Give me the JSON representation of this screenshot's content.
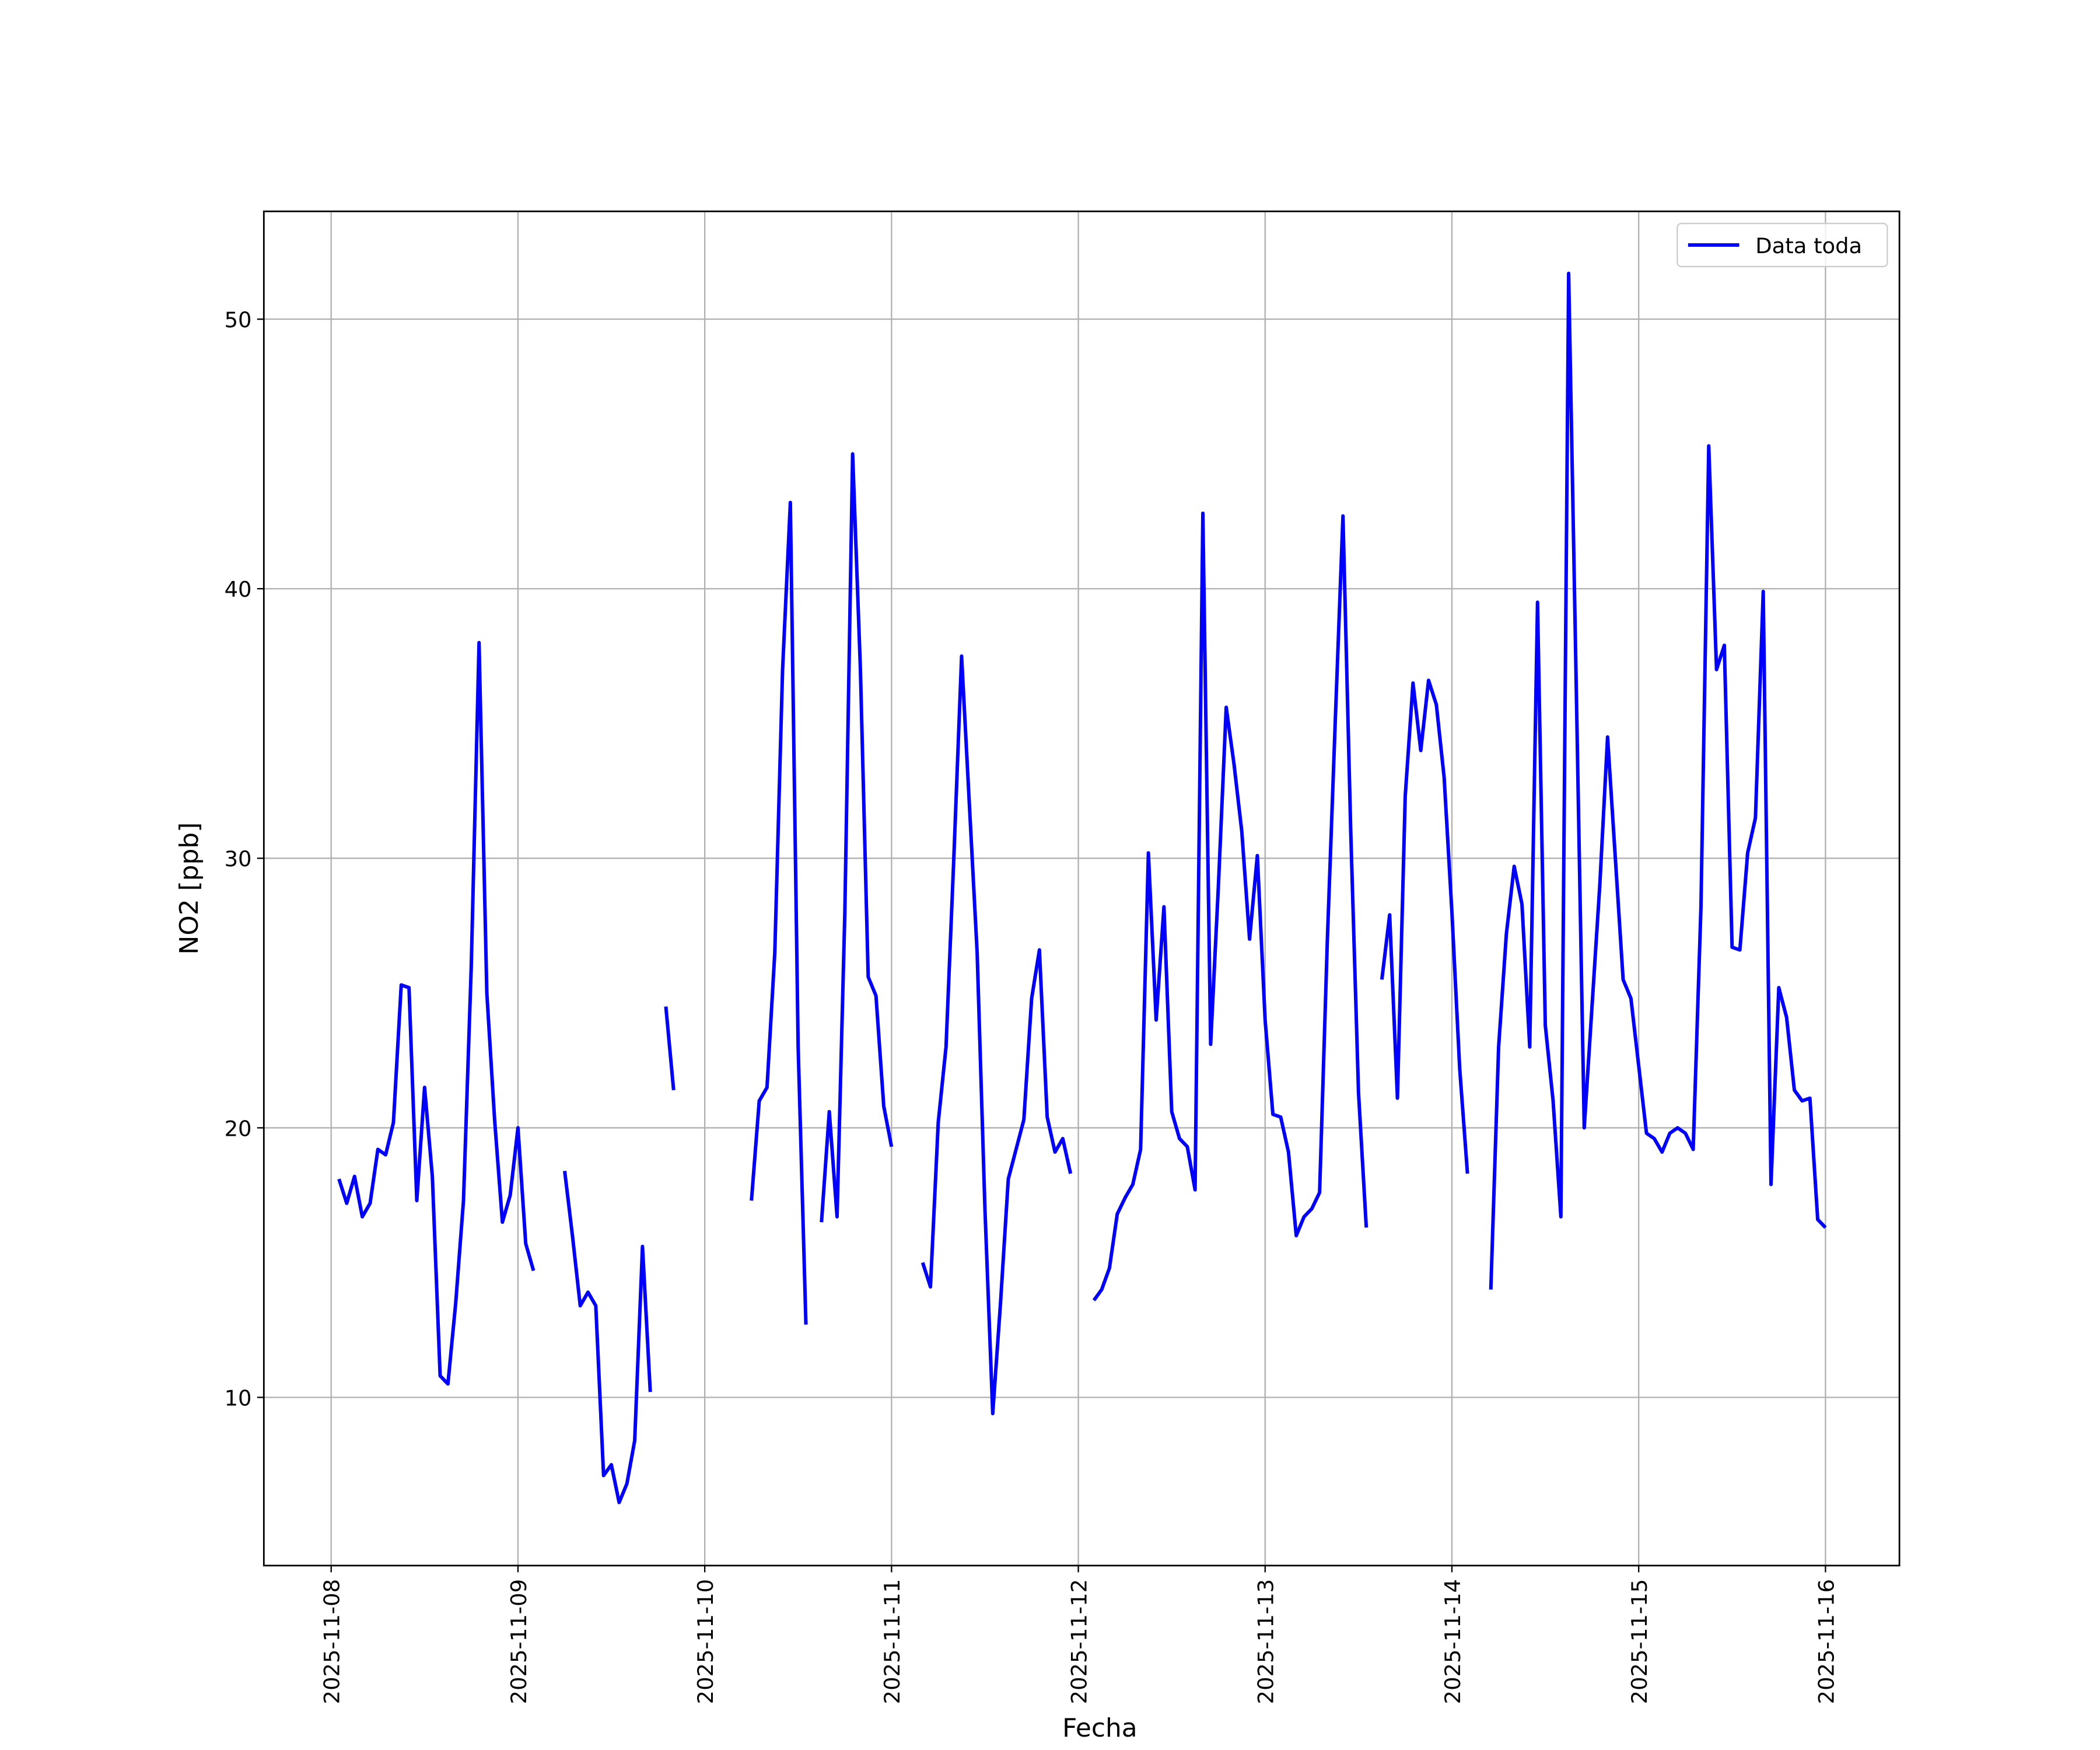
{
  "chart_data": {
    "type": "line",
    "xlabel": "Fecha",
    "ylabel": "NO2 [ppb]",
    "x": [
      "2025-11-08T01:00",
      "2025-11-08T02:00",
      "2025-11-08T03:00",
      "2025-11-08T04:00",
      "2025-11-08T05:00",
      "2025-11-08T06:00",
      "2025-11-08T07:00",
      "2025-11-08T08:00",
      "2025-11-08T09:00",
      "2025-11-08T10:00",
      "2025-11-08T11:00",
      "2025-11-08T12:00",
      "2025-11-08T13:00",
      "2025-11-08T14:00",
      "2025-11-08T15:00",
      "2025-11-08T16:00",
      "2025-11-08T17:00",
      "2025-11-08T18:00",
      "2025-11-08T19:00",
      "2025-11-08T20:00",
      "2025-11-08T21:00",
      "2025-11-08T22:00",
      "2025-11-08T23:00",
      "2025-11-09T00:00",
      "2025-11-09T01:00",
      "2025-11-09T02:00",
      "2025-11-09T03:00",
      "2025-11-09T06:00",
      "2025-11-09T07:00",
      "2025-11-09T08:00",
      "2025-11-09T09:00",
      "2025-11-09T10:00",
      "2025-11-09T11:00",
      "2025-11-09T12:00",
      "2025-11-09T13:00",
      "2025-11-09T14:00",
      "2025-11-09T15:00",
      "2025-11-09T16:00",
      "2025-11-09T17:00",
      "2025-11-09T18:00",
      "2025-11-09T19:00",
      "2025-11-09T20:00",
      "2025-11-09T21:00",
      "2025-11-10T06:00",
      "2025-11-10T07:00",
      "2025-11-10T08:00",
      "2025-11-10T09:00",
      "2025-11-10T10:00",
      "2025-11-10T11:00",
      "2025-11-10T12:00",
      "2025-11-10T13:00",
      "2025-11-10T14:00",
      "2025-11-10T15:00",
      "2025-11-10T16:00",
      "2025-11-10T17:00",
      "2025-11-10T18:00",
      "2025-11-10T19:00",
      "2025-11-10T20:00",
      "2025-11-10T21:00",
      "2025-11-10T22:00",
      "2025-11-10T23:00",
      "2025-11-11T00:00",
      "2025-11-11T01:00",
      "2025-11-11T04:00",
      "2025-11-11T05:00",
      "2025-11-11T06:00",
      "2025-11-11T07:00",
      "2025-11-11T08:00",
      "2025-11-11T09:00",
      "2025-11-11T10:00",
      "2025-11-11T11:00",
      "2025-11-11T12:00",
      "2025-11-11T13:00",
      "2025-11-11T14:00",
      "2025-11-11T15:00",
      "2025-11-11T16:00",
      "2025-11-11T17:00",
      "2025-11-11T18:00",
      "2025-11-11T19:00",
      "2025-11-11T20:00",
      "2025-11-11T21:00",
      "2025-11-11T22:00",
      "2025-11-11T23:00",
      "2025-11-12T00:00",
      "2025-11-12T02:00",
      "2025-11-12T03:00",
      "2025-11-12T04:00",
      "2025-11-12T05:00",
      "2025-11-12T06:00",
      "2025-11-12T07:00",
      "2025-11-12T08:00",
      "2025-11-12T09:00",
      "2025-11-12T10:00",
      "2025-11-12T11:00",
      "2025-11-12T12:00",
      "2025-11-12T13:00",
      "2025-11-12T14:00",
      "2025-11-12T15:00",
      "2025-11-12T16:00",
      "2025-11-12T17:00",
      "2025-11-12T18:00",
      "2025-11-12T19:00",
      "2025-11-12T20:00",
      "2025-11-12T21:00",
      "2025-11-12T22:00",
      "2025-11-12T23:00",
      "2025-11-13T00:00",
      "2025-11-13T01:00",
      "2025-11-13T02:00",
      "2025-11-13T03:00",
      "2025-11-13T04:00",
      "2025-11-13T05:00",
      "2025-11-13T06:00",
      "2025-11-13T07:00",
      "2025-11-13T08:00",
      "2025-11-13T09:00",
      "2025-11-13T10:00",
      "2025-11-13T11:00",
      "2025-11-13T12:00",
      "2025-11-13T13:00",
      "2025-11-13T14:00",
      "2025-11-13T15:00",
      "2025-11-13T16:00",
      "2025-11-13T17:00",
      "2025-11-13T18:00",
      "2025-11-13T19:00",
      "2025-11-13T20:00",
      "2025-11-13T21:00",
      "2025-11-13T22:00",
      "2025-11-13T23:00",
      "2025-11-14T00:00",
      "2025-11-14T01:00",
      "2025-11-14T02:00",
      "2025-11-14T03:00",
      "2025-11-14T05:00",
      "2025-11-14T06:00",
      "2025-11-14T07:00",
      "2025-11-14T08:00",
      "2025-11-14T09:00",
      "2025-11-14T10:00",
      "2025-11-14T11:00",
      "2025-11-14T12:00",
      "2025-11-14T13:00",
      "2025-11-14T14:00",
      "2025-11-14T15:00",
      "2025-11-14T16:00",
      "2025-11-14T17:00",
      "2025-11-14T18:00",
      "2025-11-14T19:00",
      "2025-11-14T20:00",
      "2025-11-14T21:00",
      "2025-11-14T22:00",
      "2025-11-14T23:00",
      "2025-11-15T00:00",
      "2025-11-15T01:00",
      "2025-11-15T02:00",
      "2025-11-15T03:00",
      "2025-11-15T04:00",
      "2025-11-15T05:00",
      "2025-11-15T06:00",
      "2025-11-15T07:00",
      "2025-11-15T08:00",
      "2025-11-15T09:00",
      "2025-11-15T10:00",
      "2025-11-15T11:00",
      "2025-11-15T12:00",
      "2025-11-15T13:00",
      "2025-11-15T14:00",
      "2025-11-15T15:00",
      "2025-11-15T16:00",
      "2025-11-15T17:00",
      "2025-11-15T18:00",
      "2025-11-15T19:00",
      "2025-11-15T20:00",
      "2025-11-15T21:00",
      "2025-11-15T22:00",
      "2025-11-15T23:00",
      "2025-11-16T00:00"
    ],
    "series": [
      {
        "name": "Data toda",
        "color": "#0000ff",
        "values": [
          18.1,
          17.2,
          18.2,
          16.7,
          17.2,
          19.2,
          19.0,
          20.2,
          25.3,
          25.2,
          17.3,
          21.5,
          18.2,
          10.8,
          10.5,
          13.5,
          17.3,
          26,
          38.0,
          25,
          20.3,
          16.5,
          17.5,
          20.0,
          15.7,
          14.7,
          null,
          18.4,
          16.0,
          13.4,
          13.9,
          13.4,
          7.1,
          7.5,
          6.1,
          6.8,
          8.4,
          15.6,
          10.2,
          null,
          24.5,
          21.4,
          null,
          17.3,
          21.0,
          21.5,
          26.5,
          37,
          43.2,
          23,
          12.7,
          null,
          16.5,
          20.6,
          16.7,
          28,
          45.0,
          37,
          25.6,
          24.9,
          20.8,
          19.3,
          null,
          15.0,
          14.1,
          20.2,
          23,
          30,
          37.5,
          32,
          26.5,
          17,
          9.4,
          13.5,
          18.1,
          19.2,
          20.3,
          24.8,
          26.6,
          20.4,
          19.1,
          19.6,
          18.3,
          null,
          13.6,
          14.0,
          14.8,
          16.8,
          17.4,
          17.9,
          19.2,
          30.2,
          24.0,
          28.2,
          20.6,
          19.6,
          19.3,
          17.7,
          42.8,
          23.1,
          29,
          35.6,
          33.5,
          31,
          27,
          30.1,
          24,
          20.5,
          20.4,
          19.1,
          16.0,
          16.7,
          17.0,
          17.6,
          27,
          35,
          42.7,
          31,
          21.3,
          16.3,
          null,
          25.5,
          27.9,
          21.1,
          32.3,
          36.5,
          34.0,
          36.6,
          35.7,
          33,
          28,
          22.2,
          18.3,
          null,
          14.0,
          23,
          27.2,
          29.7,
          28.3,
          23.0,
          39.5,
          23.8,
          21,
          16.7,
          51.7,
          36,
          20.0,
          24.5,
          29,
          34.5,
          30,
          25.5,
          24.8,
          22.3,
          19.8,
          19.6,
          19.1,
          19.8,
          20.0,
          19.8,
          19.2,
          28.2,
          45.3,
          37,
          37.9,
          26.7,
          26.6,
          30.2,
          31.5,
          39.9,
          17.9,
          25.2,
          24.1,
          21.4,
          21.0,
          21.1,
          16.6,
          16.3
        ]
      }
    ],
    "xlim": [
      "2025-11-07T15:21",
      "2025-11-16T09:30"
    ],
    "xticks": [
      "2025-11-08",
      "2025-11-09",
      "2025-11-10",
      "2025-11-11",
      "2025-11-12",
      "2025-11-13",
      "2025-11-14",
      "2025-11-15",
      "2025-11-16"
    ],
    "ylim": [
      3.76,
      54.0
    ],
    "yticks": [
      10,
      20,
      30,
      40,
      50
    ],
    "grid": true,
    "legend": "upper right"
  }
}
